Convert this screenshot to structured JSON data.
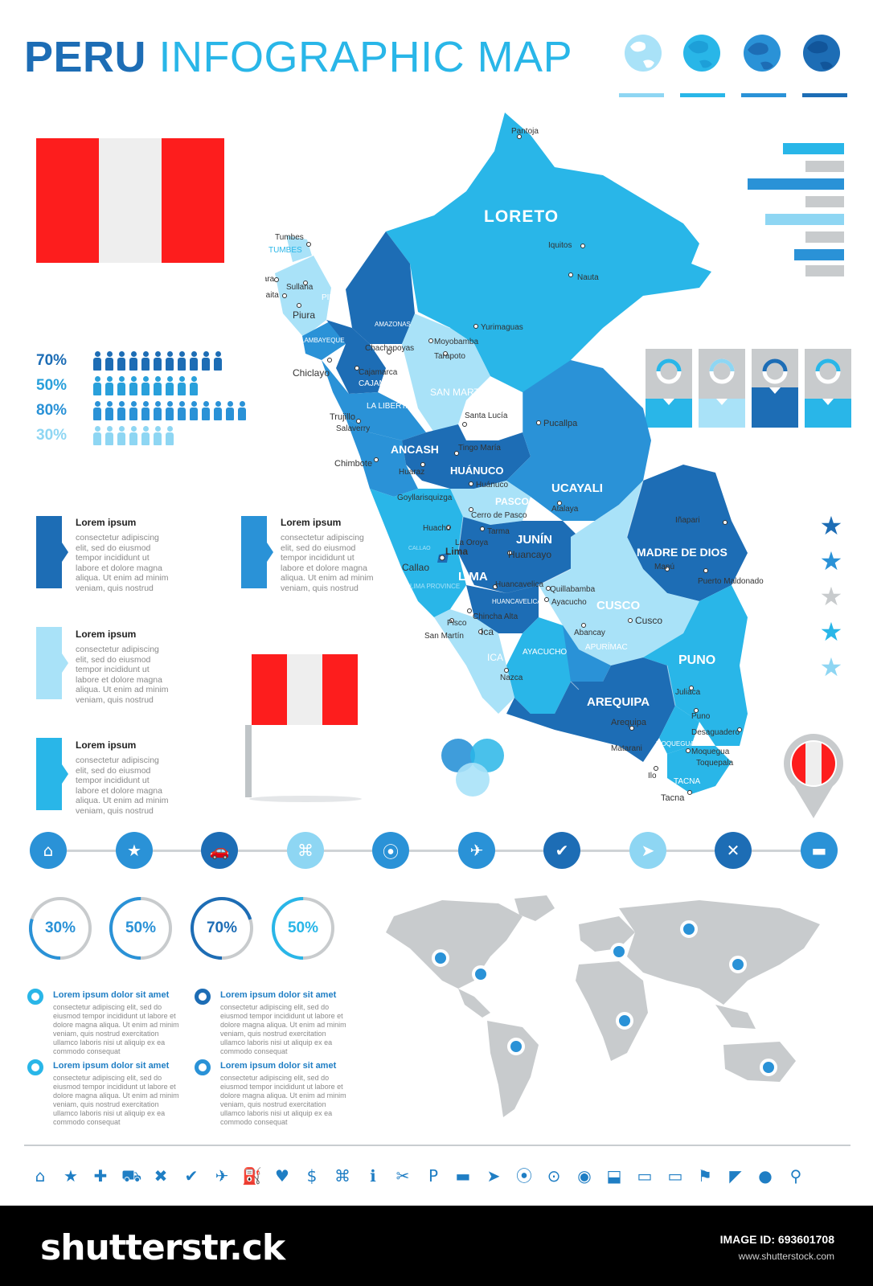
{
  "title": {
    "part1": "PERU",
    "part2": "INFOGRAPHIC MAP"
  },
  "colors": {
    "dark_blue": "#1d6db5",
    "mid_blue": "#2a92d7",
    "light_blue": "#29b6e8",
    "pale_blue": "#a9e2f8",
    "flag_red": "#fd1d1d",
    "grey": "#c8cbcd"
  },
  "percent_rows": [
    {
      "label": "70%",
      "count": 11,
      "color": "#1d6db5"
    },
    {
      "label": "50%",
      "count": 9,
      "color": "#29a0db"
    },
    {
      "label": "80%",
      "count": 13,
      "color": "#2a92d7"
    },
    {
      "label": "30%",
      "count": 7,
      "color": "#8ed6f3"
    }
  ],
  "lorem_blocks": [
    {
      "heading": "Lorem ipsum",
      "text": "consectetur adipiscing elit, sed do eiusmod tempor incididunt ut labore et dolore magna aliqua. Ut enim ad minim veniam, quis nostrud"
    },
    {
      "heading": "Lorem ipsum",
      "text": "consectetur adipiscing elit, sed do eiusmod tempor incididunt ut labore et dolore magna aliqua. Ut enim ad minim veniam, quis nostrud"
    },
    {
      "heading": "Lorem ipsum",
      "text": "consectetur adipiscing elit, sed do eiusmod tempor incididunt ut labore et dolore magna aliqua. Ut enim ad minim veniam, quis nostrud"
    },
    {
      "heading": "Lorem ipsum",
      "text": "consectetur adipiscing elit, sed do eiusmod tempor incididunt ut labore et dolore magna aliqua. Ut enim ad minim veniam, quis nostrud"
    }
  ],
  "regions": {
    "loreto": "LORETO",
    "ucayali": "UCAYALI",
    "madre_de_dios": "MADRE DE DIOS",
    "puno": "PUNO",
    "cusco": "CUSCO",
    "junin": "JUNÍN",
    "lima": "LIMA",
    "arequipa": "AREQUIPA",
    "ancash": "ANCASH",
    "huanuco": "HUÁNUCO",
    "pasco": "PASCO",
    "san_martin": "SAN MARTÍN",
    "ica": "ICA",
    "ayacucho": "AYACUCHO",
    "apurimac": "APURÍMAC",
    "huancavelica": "HUANCAVELICA",
    "tacna": "TACNA",
    "moquegua": "MOQUEGUA",
    "la_libertad": "LA LIBERTAD",
    "cajamarca": "CAJAMARCA",
    "amazonas": "AMAZONAS",
    "lambayeque": "LAMBAYEQUE",
    "piura": "PIURA",
    "tumbes": "TUMBES",
    "callao": "CALLAO",
    "lima_province": "LIMA PROVINCE"
  },
  "cities": {
    "pantoja": "Pantoja",
    "iquitos": "Iquitos",
    "nauta": "Nauta",
    "yurimaguas": "Yurimaguas",
    "moyobamba": "Moyobamba",
    "tarapoto": "Tarapoto",
    "chachapoyas": "Chachapoyas",
    "cajamarca": "Cajamarca",
    "tumbes": "Tumbes",
    "talara": "Talara",
    "sullana": "Sullana",
    "paita": "Paita",
    "piura": "Piura",
    "chiclayo": "Chiclayo",
    "trujillo": "Trujillo",
    "salaverry": "Salaverry",
    "chimbote": "Chimbote",
    "santa_lucia": "Santa Lucía",
    "pucallpa": "Pucallpa",
    "tingo_maria": "Tingo María",
    "huaraz": "Huaraz",
    "huanuco": "Huánuco",
    "goyllarisquizga": "Goyllarisquizga",
    "cerro_de_pasco": "Cerro de Pasco",
    "atalaya": "Atalaya",
    "huacho": "Huacho",
    "la_oroya": "La Oroya",
    "tarma": "Tarma",
    "lima": "Lima",
    "callao": "Callao",
    "huancayo": "Huancayo",
    "inapari": "Iñapari",
    "manu": "Manú",
    "puerto_maldonado": "Puerto Maldonado",
    "huancavelica": "Huancavelica",
    "quillabamba": "Quillabamba",
    "ayacucho": "Ayacucho",
    "chincha_alta": "Chincha Alta",
    "pisco": "Pisco",
    "san_martin": "San Martín",
    "ica": "Ica",
    "abancay": "Abancay",
    "cusco": "Cusco",
    "nazca": "Nazca",
    "juliaca": "Juliaca",
    "puno": "Puno",
    "arequipa": "Arequipa",
    "desaguadero": "Desaguadero",
    "moquegua": "Moquegua",
    "matarani": "Matarani",
    "ilo": "Ilo",
    "toquepala": "Toquepala",
    "tacna": "Tacna"
  },
  "icon_row": [
    {
      "name": "home-icon",
      "glyph": "⌂",
      "color": "#2a92d7"
    },
    {
      "name": "star-icon",
      "glyph": "★",
      "color": "#2a92d7"
    },
    {
      "name": "car-icon",
      "glyph": "🚗",
      "color": "#1d6db5"
    },
    {
      "name": "command-icon",
      "glyph": "⌘",
      "color": "#8ed6f3"
    },
    {
      "name": "location-pin-icon",
      "glyph": "⦿",
      "color": "#2a92d7"
    },
    {
      "name": "airplane-icon",
      "glyph": "✈",
      "color": "#2a92d7"
    },
    {
      "name": "checkmark-icon",
      "glyph": "✔",
      "color": "#1d6db5"
    },
    {
      "name": "navigation-arrow-icon",
      "glyph": "➤",
      "color": "#8ed6f3"
    },
    {
      "name": "cross-cutlery-icon",
      "glyph": "✕",
      "color": "#1d6db5"
    },
    {
      "name": "bed-icon",
      "glyph": "▬",
      "color": "#2a92d7"
    }
  ],
  "donuts": [
    {
      "label": "30%",
      "value": 0.3,
      "color": "#2a92d7",
      "text_color": "#2a92d7"
    },
    {
      "label": "50%",
      "value": 0.5,
      "color": "#2a92d7",
      "text_color": "#2a92d7"
    },
    {
      "label": "70%",
      "value": 0.7,
      "color": "#1d6db5",
      "text_color": "#1d6db5"
    },
    {
      "label": "50%",
      "value": 0.5,
      "color": "#29b6e8",
      "text_color": "#29b6e8"
    }
  ],
  "dolor_blocks": [
    {
      "heading": "Lorem ipsum dolor sit amet",
      "text": "consectetur adipiscing elit, sed do eiusmod tempor incididunt ut labore et dolore magna aliqua. Ut enim ad minim veniam, quis nostrud exercitation ullamco laboris nisi ut aliquip ex ea commodo consequat"
    },
    {
      "heading": "Lorem ipsum dolor sit amet",
      "text": "consectetur adipiscing elit, sed do eiusmod tempor incididunt ut labore et dolore magna aliqua. Ut enim ad minim veniam, quis nostrud exercitation ullamco laboris nisi ut aliquip ex ea commodo consequat"
    },
    {
      "heading": "Lorem ipsum dolor sit amet",
      "text": "consectetur adipiscing elit, sed do eiusmod tempor incididunt ut labore et dolore magna aliqua. Ut enim ad minim veniam, quis nostrud exercitation ullamco laboris nisi ut aliquip ex ea commodo consequat"
    },
    {
      "heading": "Lorem ipsum dolor sit amet",
      "text": "consectetur adipiscing elit, sed do eiusmod tempor incididunt ut labore et dolore magna aliqua. Ut enim ad minim veniam, quis nostrud exercitation ullamco laboris nisi ut aliquip ex ea commodo consequat"
    }
  ],
  "bottom_icons": [
    "home-icon",
    "star-icon",
    "plus-icon",
    "car-icon",
    "close-icon",
    "checkmark-icon",
    "airplane-icon",
    "fuel-icon",
    "heart-icon",
    "dollar-icon",
    "command-icon",
    "info-icon",
    "cutlery-icon",
    "parking-icon",
    "bed-icon",
    "navigation-arrow-icon",
    "location-pin-icon",
    "map-marker-icon",
    "target-pin-icon",
    "ribbon-pin-icon",
    "speech-bubble-icon",
    "wide-speech-bubble-icon",
    "flag-icon",
    "pennant-icon",
    "round-pin-icon",
    "search-icon"
  ],
  "bottom_glyphs": [
    "⌂",
    "★",
    "✚",
    "⛟",
    "✖",
    "✔",
    "✈",
    "⛽",
    "♥",
    "$",
    "⌘",
    "ℹ",
    "✂",
    "P",
    "▬",
    "➤",
    "⦿",
    "⊙",
    "◉",
    "⬓",
    "▭",
    "▭",
    "⚑",
    "◤",
    "●",
    "⚲"
  ],
  "footer": {
    "logo": "shutterstr.ck",
    "image_id": "IMAGE ID: 693601708",
    "site": "www.shutterstock.com"
  }
}
